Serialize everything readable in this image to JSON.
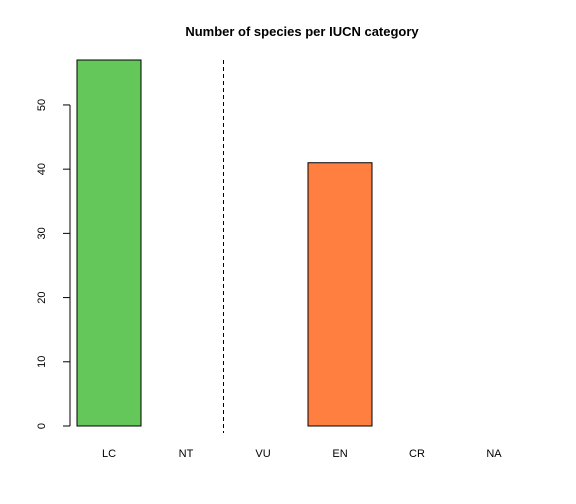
{
  "chart_data": {
    "type": "bar",
    "title": "Number of species per IUCN category",
    "xlabel": "",
    "ylabel": "",
    "categories": [
      "LC",
      "NT",
      "VU",
      "EN",
      "CR",
      "NA"
    ],
    "values": [
      57,
      0,
      0,
      41,
      0,
      0
    ],
    "colors": [
      "#63C75A",
      "#63C75A",
      "#FF7F41",
      "#FF7F41",
      "#FF7F41",
      "#FF7F41"
    ],
    "ylim": [
      0,
      57
    ],
    "yticks": [
      0,
      10,
      20,
      30,
      40,
      50
    ],
    "divider_after_category": "NT",
    "divider_style": "dashed",
    "grid": false,
    "legend": "none"
  }
}
